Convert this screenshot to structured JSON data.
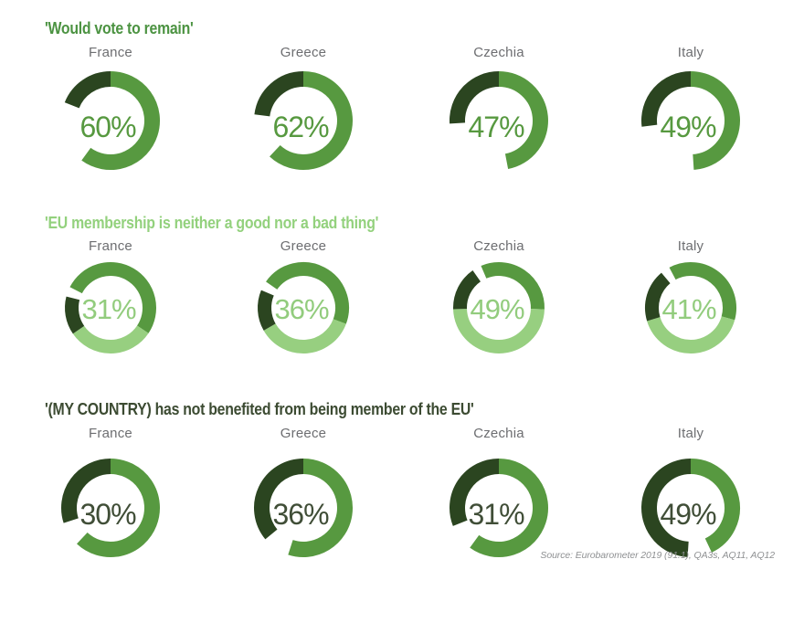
{
  "colors": {
    "mid_green": "#579940",
    "dark_green": "#2B4520",
    "light_green": "#97CF80",
    "gap": "none",
    "row1_title": "#4C9342",
    "row2_title": "#93D17D",
    "row3_title": "#3C4B32",
    "row1_value_text": "#579940",
    "row2_value_text": "#92CC7D",
    "row3_value_text": "#404E37",
    "country_label": "#6D6E71",
    "source_text": "#8F9193",
    "background": "#FFFFFF"
  },
  "source_note": "Source: Eurobarometer 2019 (91.1), QA3s, AQ11, AQ12",
  "chart_data": [
    {
      "type": "donut",
      "title": "'Would vote to remain'",
      "title_color_key": "row1_title",
      "value_text_color_key": "row1_value_text",
      "categories": [
        "France",
        "Greece",
        "Czechia",
        "Italy"
      ],
      "values": [
        60,
        62,
        47,
        49
      ],
      "donuts": [
        {
          "country": "France",
          "value": 60,
          "label": "60%",
          "rotation": 0,
          "segments": [
            {
              "color": "mid_green",
              "pct": 60
            },
            {
              "color": "gap",
              "pct": 21
            },
            {
              "color": "dark_green",
              "pct": 19
            }
          ]
        },
        {
          "country": "Greece",
          "value": 62,
          "label": "62%",
          "rotation": 0,
          "segments": [
            {
              "color": "mid_green",
              "pct": 62
            },
            {
              "color": "gap",
              "pct": 15
            },
            {
              "color": "dark_green",
              "pct": 23
            }
          ]
        },
        {
          "country": "Czechia",
          "value": 47,
          "label": "47%",
          "rotation": 0,
          "segments": [
            {
              "color": "mid_green",
              "pct": 47
            },
            {
              "color": "gap",
              "pct": 27
            },
            {
              "color": "dark_green",
              "pct": 26
            }
          ]
        },
        {
          "country": "Italy",
          "value": 49,
          "label": "49%",
          "rotation": 0,
          "segments": [
            {
              "color": "mid_green",
              "pct": 49
            },
            {
              "color": "gap",
              "pct": 24
            },
            {
              "color": "dark_green",
              "pct": 27
            }
          ]
        }
      ]
    },
    {
      "type": "donut",
      "title": "'EU membership is neither a good nor a bad thing'",
      "title_color_key": "row2_title",
      "value_text_color_key": "row2_value_text",
      "categories": [
        "France",
        "Greece",
        "Czechia",
        "Italy"
      ],
      "values": [
        31,
        36,
        49,
        41
      ],
      "donuts": [
        {
          "country": "France",
          "value": 31,
          "label": "31%",
          "rotation": -63,
          "segments": [
            {
              "color": "mid_green",
              "pct": 51.9
            },
            {
              "color": "light_green",
              "pct": 31
            },
            {
              "color": "dark_green",
              "pct": 13.6
            },
            {
              "color": "gap",
              "pct": 3.5
            }
          ]
        },
        {
          "country": "Greece",
          "value": 36,
          "label": "36%",
          "rotation": -55,
          "segments": [
            {
              "color": "mid_green",
              "pct": 46
            },
            {
              "color": "light_green",
              "pct": 36
            },
            {
              "color": "dark_green",
              "pct": 14.6
            },
            {
              "color": "gap",
              "pct": 3.4
            }
          ]
        },
        {
          "country": "Czechia",
          "value": 49,
          "label": "49%",
          "rotation": -23,
          "segments": [
            {
              "color": "mid_green",
              "pct": 31.9
            },
            {
              "color": "light_green",
              "pct": 49
            },
            {
              "color": "dark_green",
              "pct": 15.8
            },
            {
              "color": "gap",
              "pct": 3.3
            }
          ]
        },
        {
          "country": "Italy",
          "value": 41,
          "label": "41%",
          "rotation": -28,
          "segments": [
            {
              "color": "mid_green",
              "pct": 37.1
            },
            {
              "color": "light_green",
              "pct": 41
            },
            {
              "color": "dark_green",
              "pct": 18.6
            },
            {
              "color": "gap",
              "pct": 3.3
            }
          ]
        }
      ]
    },
    {
      "type": "donut",
      "title": "'(MY COUNTRY) has not benefited from being member of the EU'",
      "title_color_key": "row3_title",
      "value_text_color_key": "row3_value_text",
      "categories": [
        "France",
        "Greece",
        "Czechia",
        "Italy"
      ],
      "values": [
        30,
        36,
        31,
        49
      ],
      "donuts": [
        {
          "country": "France",
          "value": 30,
          "label": "30%",
          "rotation": 0,
          "segments": [
            {
              "color": "mid_green",
              "pct": 62
            },
            {
              "color": "gap",
              "pct": 8
            },
            {
              "color": "dark_green",
              "pct": 30
            }
          ]
        },
        {
          "country": "Greece",
          "value": 36,
          "label": "36%",
          "rotation": 0,
          "segments": [
            {
              "color": "mid_green",
              "pct": 55
            },
            {
              "color": "gap",
              "pct": 9
            },
            {
              "color": "dark_green",
              "pct": 36
            }
          ]
        },
        {
          "country": "Czechia",
          "value": 31,
          "label": "31%",
          "rotation": 0,
          "segments": [
            {
              "color": "mid_green",
              "pct": 60
            },
            {
              "color": "gap",
              "pct": 9
            },
            {
              "color": "dark_green",
              "pct": 31
            }
          ]
        },
        {
          "country": "Italy",
          "value": 49,
          "label": "49%",
          "rotation": 0,
          "segments": [
            {
              "color": "mid_green",
              "pct": 43
            },
            {
              "color": "gap",
              "pct": 8
            },
            {
              "color": "dark_green",
              "pct": 49
            }
          ]
        }
      ]
    }
  ]
}
